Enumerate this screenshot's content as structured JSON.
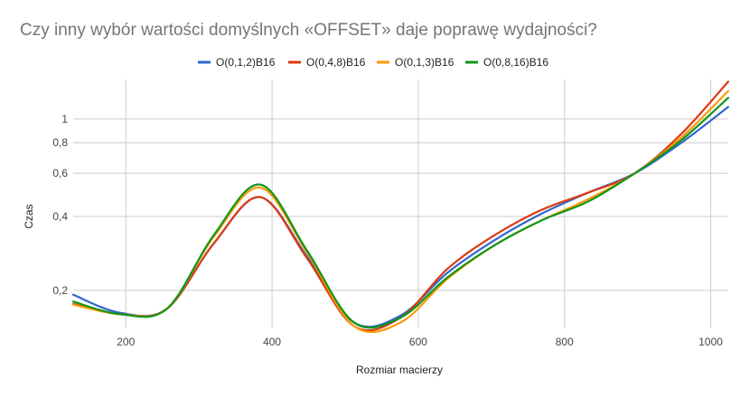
{
  "chart_data": {
    "type": "line",
    "title": "Czy inny wybór wartości domyślnych «OFFSET» daje poprawę wydajności?",
    "xlabel": "Rozmiar macierzy",
    "ylabel": "Czas",
    "xlim": [
      128,
      1024
    ],
    "ylim": [
      0.14,
      1.45
    ],
    "y_scale": "log",
    "grid": true,
    "legend_position": "top",
    "x_ticks": [
      200,
      400,
      600,
      800,
      1000
    ],
    "y_ticks": [
      0.2,
      0.4,
      0.6,
      0.8,
      1
    ],
    "y_tick_labels": [
      "0,2",
      "0,4",
      "0,6",
      "0,8",
      "1"
    ],
    "x": [
      128,
      192,
      256,
      320,
      384,
      448,
      512,
      576,
      640,
      704,
      768,
      832,
      896,
      960,
      1024
    ],
    "series": [
      {
        "name": "O(0,1,2)B16",
        "color": "#3366cc",
        "values": [
          0.192,
          0.162,
          0.168,
          0.31,
          0.48,
          0.275,
          0.148,
          0.158,
          0.236,
          0.32,
          0.41,
          0.5,
          0.6,
          0.8,
          1.12
        ]
      },
      {
        "name": "O(0,4,8)B16",
        "color": "#dc3912",
        "values": [
          0.176,
          0.16,
          0.168,
          0.31,
          0.48,
          0.27,
          0.143,
          0.155,
          0.245,
          0.335,
          0.425,
          0.5,
          0.6,
          0.87,
          1.42
        ]
      },
      {
        "name": "O(0,1,3)B16",
        "color": "#ff9900",
        "values": [
          0.175,
          0.16,
          0.168,
          0.33,
          0.525,
          0.285,
          0.143,
          0.148,
          0.223,
          0.305,
          0.385,
          0.47,
          0.6,
          0.84,
          1.3
        ]
      },
      {
        "name": "O(0,8,16)B16",
        "color": "#109618",
        "values": [
          0.18,
          0.16,
          0.168,
          0.335,
          0.54,
          0.29,
          0.148,
          0.155,
          0.226,
          0.305,
          0.385,
          0.46,
          0.6,
          0.82,
          1.22
        ]
      }
    ]
  }
}
